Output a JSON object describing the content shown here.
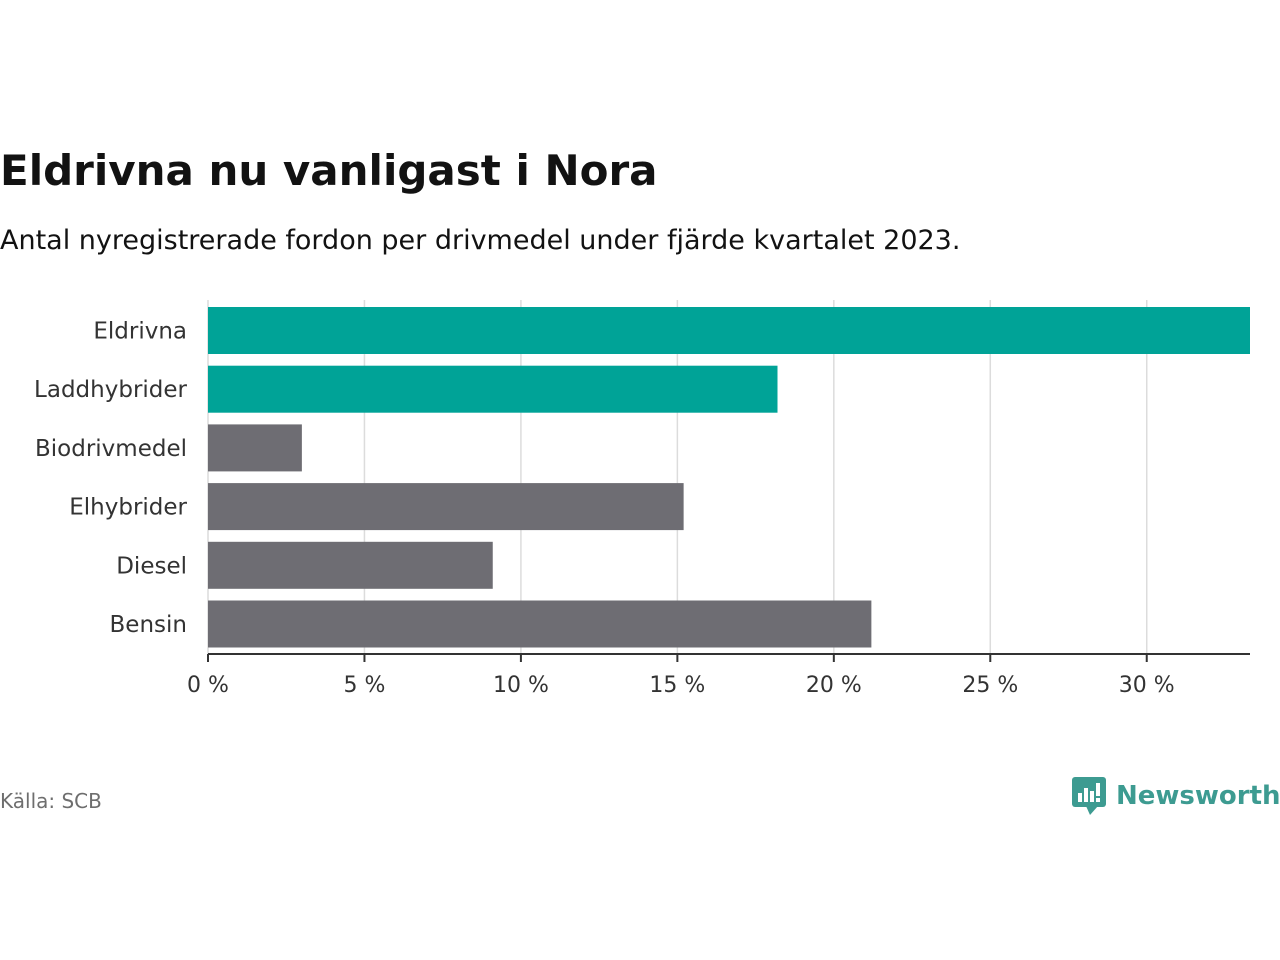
{
  "header": {
    "title": "Eldrivna nu vanligast i Nora",
    "subtitle": "Antal nyregistrerade fordon per drivmedel under fjärde kvartalet 2023."
  },
  "footer": {
    "source": "Källa: SCB",
    "brand": "Newsworthy"
  },
  "colors": {
    "highlight": "#00a397",
    "default": "#6e6d73",
    "grid": "#dcdcdc",
    "axis": "#333333",
    "brand": "#3d9b91"
  },
  "chart_data": {
    "type": "bar",
    "orientation": "horizontal",
    "title": "Eldrivna nu vanligast i Nora",
    "subtitle": "Antal nyregistrerade fordon per drivmedel under fjärde kvartalet 2023.",
    "categories": [
      "Eldrivna",
      "Laddhybrider",
      "Biodrivmedel",
      "Elhybrider",
      "Diesel",
      "Bensin"
    ],
    "values": [
      33.3,
      18.2,
      3.0,
      15.2,
      9.1,
      21.2
    ],
    "highlighted": [
      true,
      true,
      false,
      false,
      false,
      false
    ],
    "unit": "%",
    "xlim": [
      0,
      33.3
    ],
    "xticks": [
      0,
      5,
      10,
      15,
      20,
      25,
      30
    ],
    "xtick_labels": [
      "0 %",
      "5 %",
      "10 %",
      "15 %",
      "20 %",
      "25 %",
      "30 %"
    ],
    "xlabel": "",
    "ylabel": "",
    "grid": true,
    "source": "Källa: SCB"
  }
}
